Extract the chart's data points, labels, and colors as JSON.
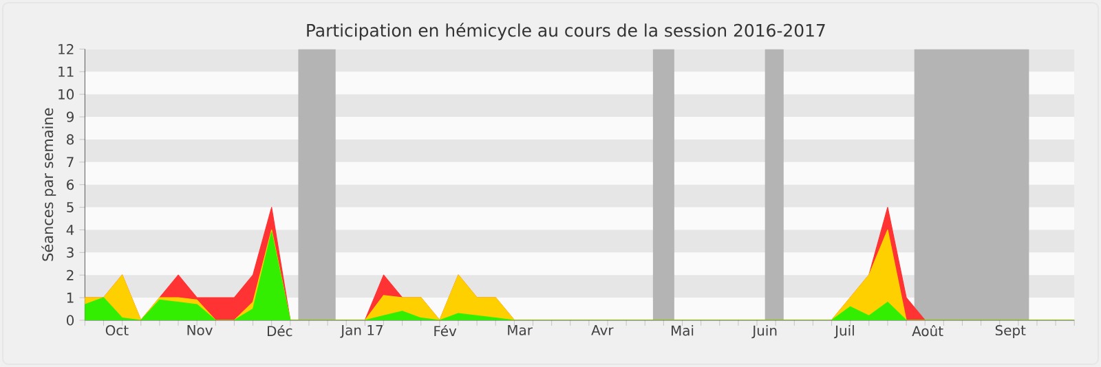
{
  "chart_data": {
    "type": "area",
    "stacked": true,
    "title": "Participation en hémicycle au cours de la session 2016-2017",
    "ylabel": "Séances par semaine",
    "x": [
      "2016-09-19",
      "2016-09-26",
      "2016-10-03",
      "2016-10-10",
      "2016-10-17",
      "2016-10-24",
      "2016-10-31",
      "2016-11-07",
      "2016-11-14",
      "2016-11-21",
      "2016-11-28",
      "2016-12-05",
      "2016-12-12",
      "2016-12-19",
      "2016-12-26",
      "2017-01-02",
      "2017-01-09",
      "2017-01-16",
      "2017-01-23",
      "2017-01-30",
      "2017-02-06",
      "2017-02-13",
      "2017-02-20",
      "2017-02-27",
      "2017-03-06",
      "2017-03-13",
      "2017-03-20",
      "2017-03-27",
      "2017-04-03",
      "2017-04-10",
      "2017-04-17",
      "2017-04-24",
      "2017-05-01",
      "2017-05-08",
      "2017-05-15",
      "2017-05-22",
      "2017-05-29",
      "2017-06-05",
      "2017-06-12",
      "2017-06-19",
      "2017-06-26",
      "2017-07-03",
      "2017-07-10",
      "2017-07-17",
      "2017-07-24",
      "2017-07-31",
      "2017-08-07",
      "2017-08-14",
      "2017-08-21",
      "2017-08-28",
      "2017-09-04",
      "2017-09-11",
      "2017-09-18",
      "2017-09-25"
    ],
    "series": [
      {
        "color": "#33ee00",
        "values": [
          0.7,
          1.0,
          0.1,
          0,
          0.9,
          0.8,
          0.7,
          0,
          0,
          0.5,
          3.9,
          0,
          0,
          0,
          0,
          0,
          0.2,
          0.4,
          0.1,
          0,
          0.3,
          0.2,
          0.1,
          0,
          0,
          0,
          0,
          0,
          0,
          0,
          0,
          0,
          0,
          0,
          0,
          0,
          0,
          0,
          0,
          0,
          0,
          0.6,
          0.2,
          0.8,
          0,
          0,
          0,
          0,
          0,
          0,
          0,
          0,
          0,
          0
        ]
      },
      {
        "color": "#ffd000",
        "values": [
          0.3,
          0,
          1.9,
          0,
          0.1,
          0.2,
          0.2,
          0,
          0,
          0.3,
          0.1,
          0,
          0,
          0,
          0,
          0,
          0.9,
          0.6,
          0.9,
          0,
          1.7,
          0.8,
          0.9,
          0,
          0,
          0,
          0,
          0,
          0,
          0,
          0,
          0,
          0,
          0,
          0,
          0,
          0,
          0,
          0,
          0,
          0,
          0.4,
          1.8,
          3.2,
          0,
          0,
          0,
          0,
          0,
          0,
          0,
          0,
          0,
          0
        ]
      },
      {
        "color": "#ff3333",
        "values": [
          0,
          0,
          0,
          0,
          0,
          1.0,
          0.1,
          1,
          1,
          1.2,
          1.0,
          0,
          0,
          0,
          0,
          0,
          0.9,
          0,
          0,
          0,
          0,
          0,
          0,
          0,
          0,
          0,
          0,
          0,
          0,
          0,
          0,
          0,
          0,
          0,
          0,
          0,
          0,
          0,
          0,
          0,
          0,
          0,
          0,
          1.0,
          1.0,
          0,
          0,
          0,
          0,
          0,
          0,
          0,
          0,
          0
        ]
      }
    ],
    "xlim": [
      "2016-09-19",
      "2017-09-25"
    ],
    "ylim": [
      0,
      12
    ],
    "yticks": [
      0,
      1,
      2,
      3,
      4,
      5,
      6,
      7,
      8,
      9,
      10,
      11,
      12
    ],
    "xticks": [
      {
        "value": "2016-09-19",
        "label": null
      },
      {
        "value": "2016-09-26",
        "label": null
      },
      {
        "value": "2016-10-03",
        "label": null
      },
      {
        "value": "2016-10-10",
        "label": null
      },
      {
        "value": "2016-10-17",
        "label": null
      },
      {
        "value": "2016-10-24",
        "label": null
      },
      {
        "value": "2016-10-31",
        "label": null
      },
      {
        "value": "2016-11-07",
        "label": null
      },
      {
        "value": "2016-11-14",
        "label": null
      },
      {
        "value": "2016-11-21",
        "label": null
      },
      {
        "value": "2016-11-28",
        "label": null
      },
      {
        "value": "2016-12-05",
        "label": null
      },
      {
        "value": "2016-12-12",
        "label": null
      },
      {
        "value": "2016-12-19",
        "label": null
      },
      {
        "value": "2016-12-26",
        "label": null
      },
      {
        "value": "2017-01-02",
        "label": null
      },
      {
        "value": "2017-01-09",
        "label": null
      },
      {
        "value": "2017-01-16",
        "label": null
      },
      {
        "value": "2017-01-23",
        "label": null
      },
      {
        "value": "2017-01-30",
        "label": null
      },
      {
        "value": "2017-02-06",
        "label": null
      },
      {
        "value": "2017-02-13",
        "label": null
      },
      {
        "value": "2017-02-20",
        "label": null
      },
      {
        "value": "2017-02-27",
        "label": null
      },
      {
        "value": "2017-03-06",
        "label": null
      },
      {
        "value": "2017-03-13",
        "label": null
      },
      {
        "value": "2017-03-20",
        "label": null
      },
      {
        "value": "2017-03-27",
        "label": null
      },
      {
        "value": "2017-04-03",
        "label": null
      },
      {
        "value": "2017-04-10",
        "label": null
      },
      {
        "value": "2017-04-17",
        "label": null
      },
      {
        "value": "2017-04-24",
        "label": null
      },
      {
        "value": "2017-05-01",
        "label": null
      },
      {
        "value": "2017-05-08",
        "label": null
      },
      {
        "value": "2017-05-15",
        "label": null
      },
      {
        "value": "2017-05-22",
        "label": null
      },
      {
        "value": "2017-05-29",
        "label": null
      },
      {
        "value": "2017-06-05",
        "label": null
      },
      {
        "value": "2017-06-12",
        "label": null
      },
      {
        "value": "2017-06-19",
        "label": null
      },
      {
        "value": "2017-06-26",
        "label": null
      },
      {
        "value": "2017-07-03",
        "label": null
      },
      {
        "value": "2017-07-10",
        "label": null
      },
      {
        "value": "2017-07-17",
        "label": null
      },
      {
        "value": "2017-07-24",
        "label": null
      },
      {
        "value": "2017-07-31",
        "label": null
      },
      {
        "value": "2017-08-07",
        "label": null
      },
      {
        "value": "2017-08-14",
        "label": null
      },
      {
        "value": "2017-08-21",
        "label": null
      },
      {
        "value": "2017-08-28",
        "label": null
      },
      {
        "value": "2017-09-04",
        "label": null
      },
      {
        "value": "2017-09-11",
        "label": null
      },
      {
        "value": "2017-09-18",
        "label": null
      },
      {
        "value": "2017-09-25",
        "label": null
      },
      {
        "value": "2016-10-01",
        "label": "Oct"
      },
      {
        "value": "2016-11-01",
        "label": "Nov"
      },
      {
        "value": "2016-12-01",
        "label": "Déc"
      },
      {
        "value": "2017-01-01",
        "label": "Jan 17"
      },
      {
        "value": "2017-02-01",
        "label": "Fév"
      },
      {
        "value": "2017-03-01",
        "label": "Mar"
      },
      {
        "value": "2017-04-01",
        "label": "Avr"
      },
      {
        "value": "2017-05-01",
        "label": "Mai"
      },
      {
        "value": "2017-06-01",
        "label": "Juin"
      },
      {
        "value": "2017-07-01",
        "label": "Juil"
      },
      {
        "value": "2017-08-01",
        "label": "Août"
      },
      {
        "value": "2017-09-01",
        "label": "Sept"
      }
    ],
    "bands": [
      {
        "axis": "x",
        "from": "2016-12-08",
        "to": "2016-12-22",
        "color": "#b4b4b4"
      },
      {
        "axis": "x",
        "from": "2017-04-20",
        "to": "2017-04-28",
        "color": "#b4b4b4"
      },
      {
        "axis": "x",
        "from": "2017-06-01",
        "to": "2017-06-08",
        "color": "#b4b4b4"
      },
      {
        "axis": "x",
        "from": "2017-07-27",
        "to": "2017-09-08",
        "color": "#b4b4b4"
      }
    ]
  }
}
